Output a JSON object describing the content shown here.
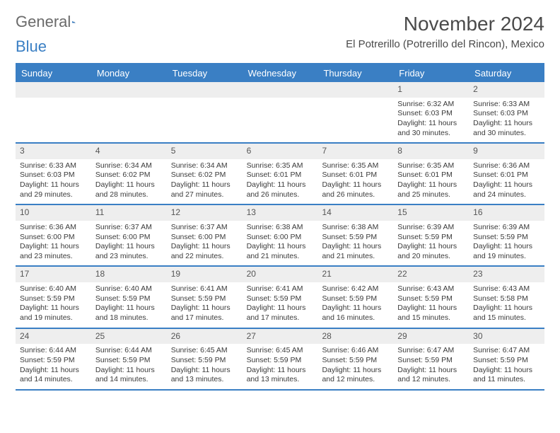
{
  "brand": {
    "part1": "General",
    "part2": "Blue"
  },
  "title": "November 2024",
  "location": "El Potrerillo (Potrerillo del Rincon), Mexico",
  "colors": {
    "brand_blue": "#3a7fc4",
    "header_bg": "#3a7fc4",
    "header_text": "#ffffff",
    "daynum_bg": "#eeeeee",
    "border": "#3a7fc4",
    "text": "#3a3a3a"
  },
  "dayNames": [
    "Sunday",
    "Monday",
    "Tuesday",
    "Wednesday",
    "Thursday",
    "Friday",
    "Saturday"
  ],
  "weeks": [
    [
      {
        "empty": true
      },
      {
        "empty": true
      },
      {
        "empty": true
      },
      {
        "empty": true
      },
      {
        "empty": true
      },
      {
        "day": "1",
        "sunrise": "Sunrise: 6:32 AM",
        "sunset": "Sunset: 6:03 PM",
        "daylight": "Daylight: 11 hours and 30 minutes."
      },
      {
        "day": "2",
        "sunrise": "Sunrise: 6:33 AM",
        "sunset": "Sunset: 6:03 PM",
        "daylight": "Daylight: 11 hours and 30 minutes."
      }
    ],
    [
      {
        "day": "3",
        "sunrise": "Sunrise: 6:33 AM",
        "sunset": "Sunset: 6:03 PM",
        "daylight": "Daylight: 11 hours and 29 minutes."
      },
      {
        "day": "4",
        "sunrise": "Sunrise: 6:34 AM",
        "sunset": "Sunset: 6:02 PM",
        "daylight": "Daylight: 11 hours and 28 minutes."
      },
      {
        "day": "5",
        "sunrise": "Sunrise: 6:34 AM",
        "sunset": "Sunset: 6:02 PM",
        "daylight": "Daylight: 11 hours and 27 minutes."
      },
      {
        "day": "6",
        "sunrise": "Sunrise: 6:35 AM",
        "sunset": "Sunset: 6:01 PM",
        "daylight": "Daylight: 11 hours and 26 minutes."
      },
      {
        "day": "7",
        "sunrise": "Sunrise: 6:35 AM",
        "sunset": "Sunset: 6:01 PM",
        "daylight": "Daylight: 11 hours and 26 minutes."
      },
      {
        "day": "8",
        "sunrise": "Sunrise: 6:35 AM",
        "sunset": "Sunset: 6:01 PM",
        "daylight": "Daylight: 11 hours and 25 minutes."
      },
      {
        "day": "9",
        "sunrise": "Sunrise: 6:36 AM",
        "sunset": "Sunset: 6:01 PM",
        "daylight": "Daylight: 11 hours and 24 minutes."
      }
    ],
    [
      {
        "day": "10",
        "sunrise": "Sunrise: 6:36 AM",
        "sunset": "Sunset: 6:00 PM",
        "daylight": "Daylight: 11 hours and 23 minutes."
      },
      {
        "day": "11",
        "sunrise": "Sunrise: 6:37 AM",
        "sunset": "Sunset: 6:00 PM",
        "daylight": "Daylight: 11 hours and 23 minutes."
      },
      {
        "day": "12",
        "sunrise": "Sunrise: 6:37 AM",
        "sunset": "Sunset: 6:00 PM",
        "daylight": "Daylight: 11 hours and 22 minutes."
      },
      {
        "day": "13",
        "sunrise": "Sunrise: 6:38 AM",
        "sunset": "Sunset: 6:00 PM",
        "daylight": "Daylight: 11 hours and 21 minutes."
      },
      {
        "day": "14",
        "sunrise": "Sunrise: 6:38 AM",
        "sunset": "Sunset: 5:59 PM",
        "daylight": "Daylight: 11 hours and 21 minutes."
      },
      {
        "day": "15",
        "sunrise": "Sunrise: 6:39 AM",
        "sunset": "Sunset: 5:59 PM",
        "daylight": "Daylight: 11 hours and 20 minutes."
      },
      {
        "day": "16",
        "sunrise": "Sunrise: 6:39 AM",
        "sunset": "Sunset: 5:59 PM",
        "daylight": "Daylight: 11 hours and 19 minutes."
      }
    ],
    [
      {
        "day": "17",
        "sunrise": "Sunrise: 6:40 AM",
        "sunset": "Sunset: 5:59 PM",
        "daylight": "Daylight: 11 hours and 19 minutes."
      },
      {
        "day": "18",
        "sunrise": "Sunrise: 6:40 AM",
        "sunset": "Sunset: 5:59 PM",
        "daylight": "Daylight: 11 hours and 18 minutes."
      },
      {
        "day": "19",
        "sunrise": "Sunrise: 6:41 AM",
        "sunset": "Sunset: 5:59 PM",
        "daylight": "Daylight: 11 hours and 17 minutes."
      },
      {
        "day": "20",
        "sunrise": "Sunrise: 6:41 AM",
        "sunset": "Sunset: 5:59 PM",
        "daylight": "Daylight: 11 hours and 17 minutes."
      },
      {
        "day": "21",
        "sunrise": "Sunrise: 6:42 AM",
        "sunset": "Sunset: 5:59 PM",
        "daylight": "Daylight: 11 hours and 16 minutes."
      },
      {
        "day": "22",
        "sunrise": "Sunrise: 6:43 AM",
        "sunset": "Sunset: 5:59 PM",
        "daylight": "Daylight: 11 hours and 15 minutes."
      },
      {
        "day": "23",
        "sunrise": "Sunrise: 6:43 AM",
        "sunset": "Sunset: 5:58 PM",
        "daylight": "Daylight: 11 hours and 15 minutes."
      }
    ],
    [
      {
        "day": "24",
        "sunrise": "Sunrise: 6:44 AM",
        "sunset": "Sunset: 5:59 PM",
        "daylight": "Daylight: 11 hours and 14 minutes."
      },
      {
        "day": "25",
        "sunrise": "Sunrise: 6:44 AM",
        "sunset": "Sunset: 5:59 PM",
        "daylight": "Daylight: 11 hours and 14 minutes."
      },
      {
        "day": "26",
        "sunrise": "Sunrise: 6:45 AM",
        "sunset": "Sunset: 5:59 PM",
        "daylight": "Daylight: 11 hours and 13 minutes."
      },
      {
        "day": "27",
        "sunrise": "Sunrise: 6:45 AM",
        "sunset": "Sunset: 5:59 PM",
        "daylight": "Daylight: 11 hours and 13 minutes."
      },
      {
        "day": "28",
        "sunrise": "Sunrise: 6:46 AM",
        "sunset": "Sunset: 5:59 PM",
        "daylight": "Daylight: 11 hours and 12 minutes."
      },
      {
        "day": "29",
        "sunrise": "Sunrise: 6:47 AM",
        "sunset": "Sunset: 5:59 PM",
        "daylight": "Daylight: 11 hours and 12 minutes."
      },
      {
        "day": "30",
        "sunrise": "Sunrise: 6:47 AM",
        "sunset": "Sunset: 5:59 PM",
        "daylight": "Daylight: 11 hours and 11 minutes."
      }
    ]
  ]
}
